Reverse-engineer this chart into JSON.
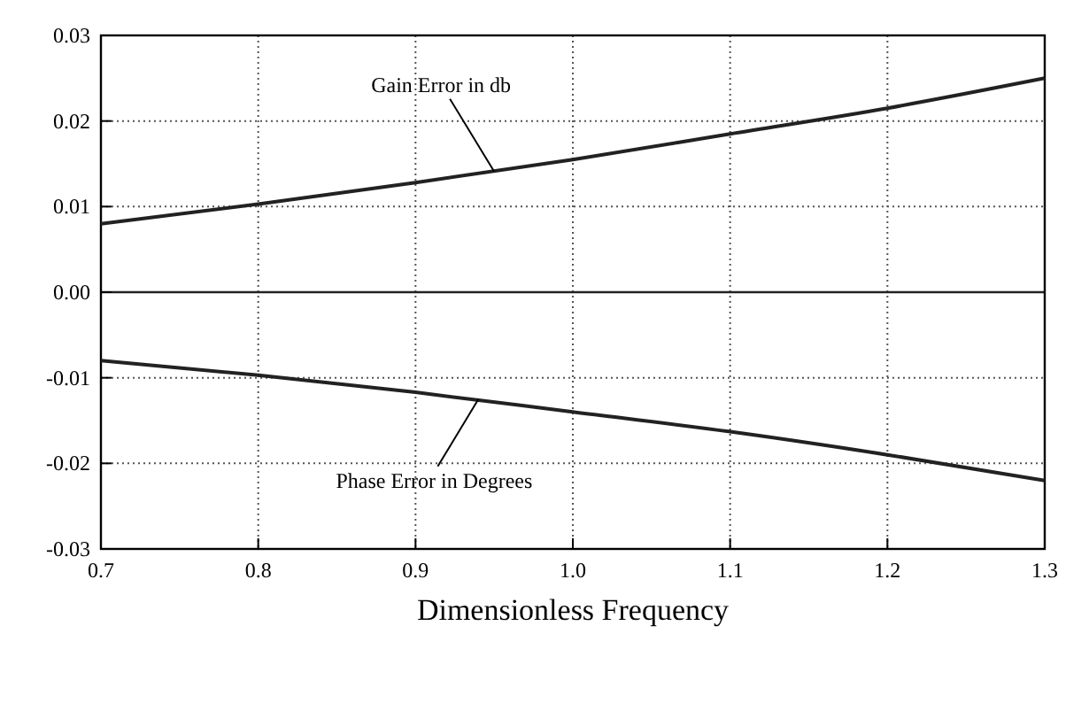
{
  "chart_data": {
    "type": "line",
    "xlabel": "Dimensionless Frequency",
    "x": [
      0.7,
      0.8,
      0.9,
      1.0,
      1.1,
      1.2,
      1.3
    ],
    "series": [
      {
        "color": "#222222",
        "values": [
          0.008,
          0.0103,
          0.0128,
          0.0155,
          0.0185,
          0.0215,
          0.025
        ]
      },
      {
        "color": "#222222",
        "values": [
          -0.008,
          -0.0097,
          -0.0117,
          -0.014,
          -0.0163,
          -0.019,
          -0.022
        ]
      }
    ],
    "xlim": [
      0.7,
      1.3
    ],
    "xticks": [
      0.7,
      0.8,
      0.9,
      {
        "value": 1.0,
        "label": "1.0"
      },
      1.1,
      1.2,
      1.3
    ],
    "ylim": [
      -0.03,
      0.03
    ],
    "yticks": [
      -0.03,
      -0.02,
      -0.01,
      {
        "value": 0,
        "label": "0.00"
      },
      0.01,
      0.02,
      0.03
    ],
    "grid": true,
    "marker": "none",
    "line_style": "solid",
    "ref_lines": [
      {
        "axis": "y",
        "value": 0,
        "color": "#222222",
        "line_style": "solid"
      }
    ],
    "annotations": [
      {
        "text": "Gain Error in db",
        "x": 0.95,
        "y": 0.0141
      },
      {
        "text": "Phase Error in Degrees",
        "x": 0.94,
        "y": -0.0125
      }
    ]
  }
}
